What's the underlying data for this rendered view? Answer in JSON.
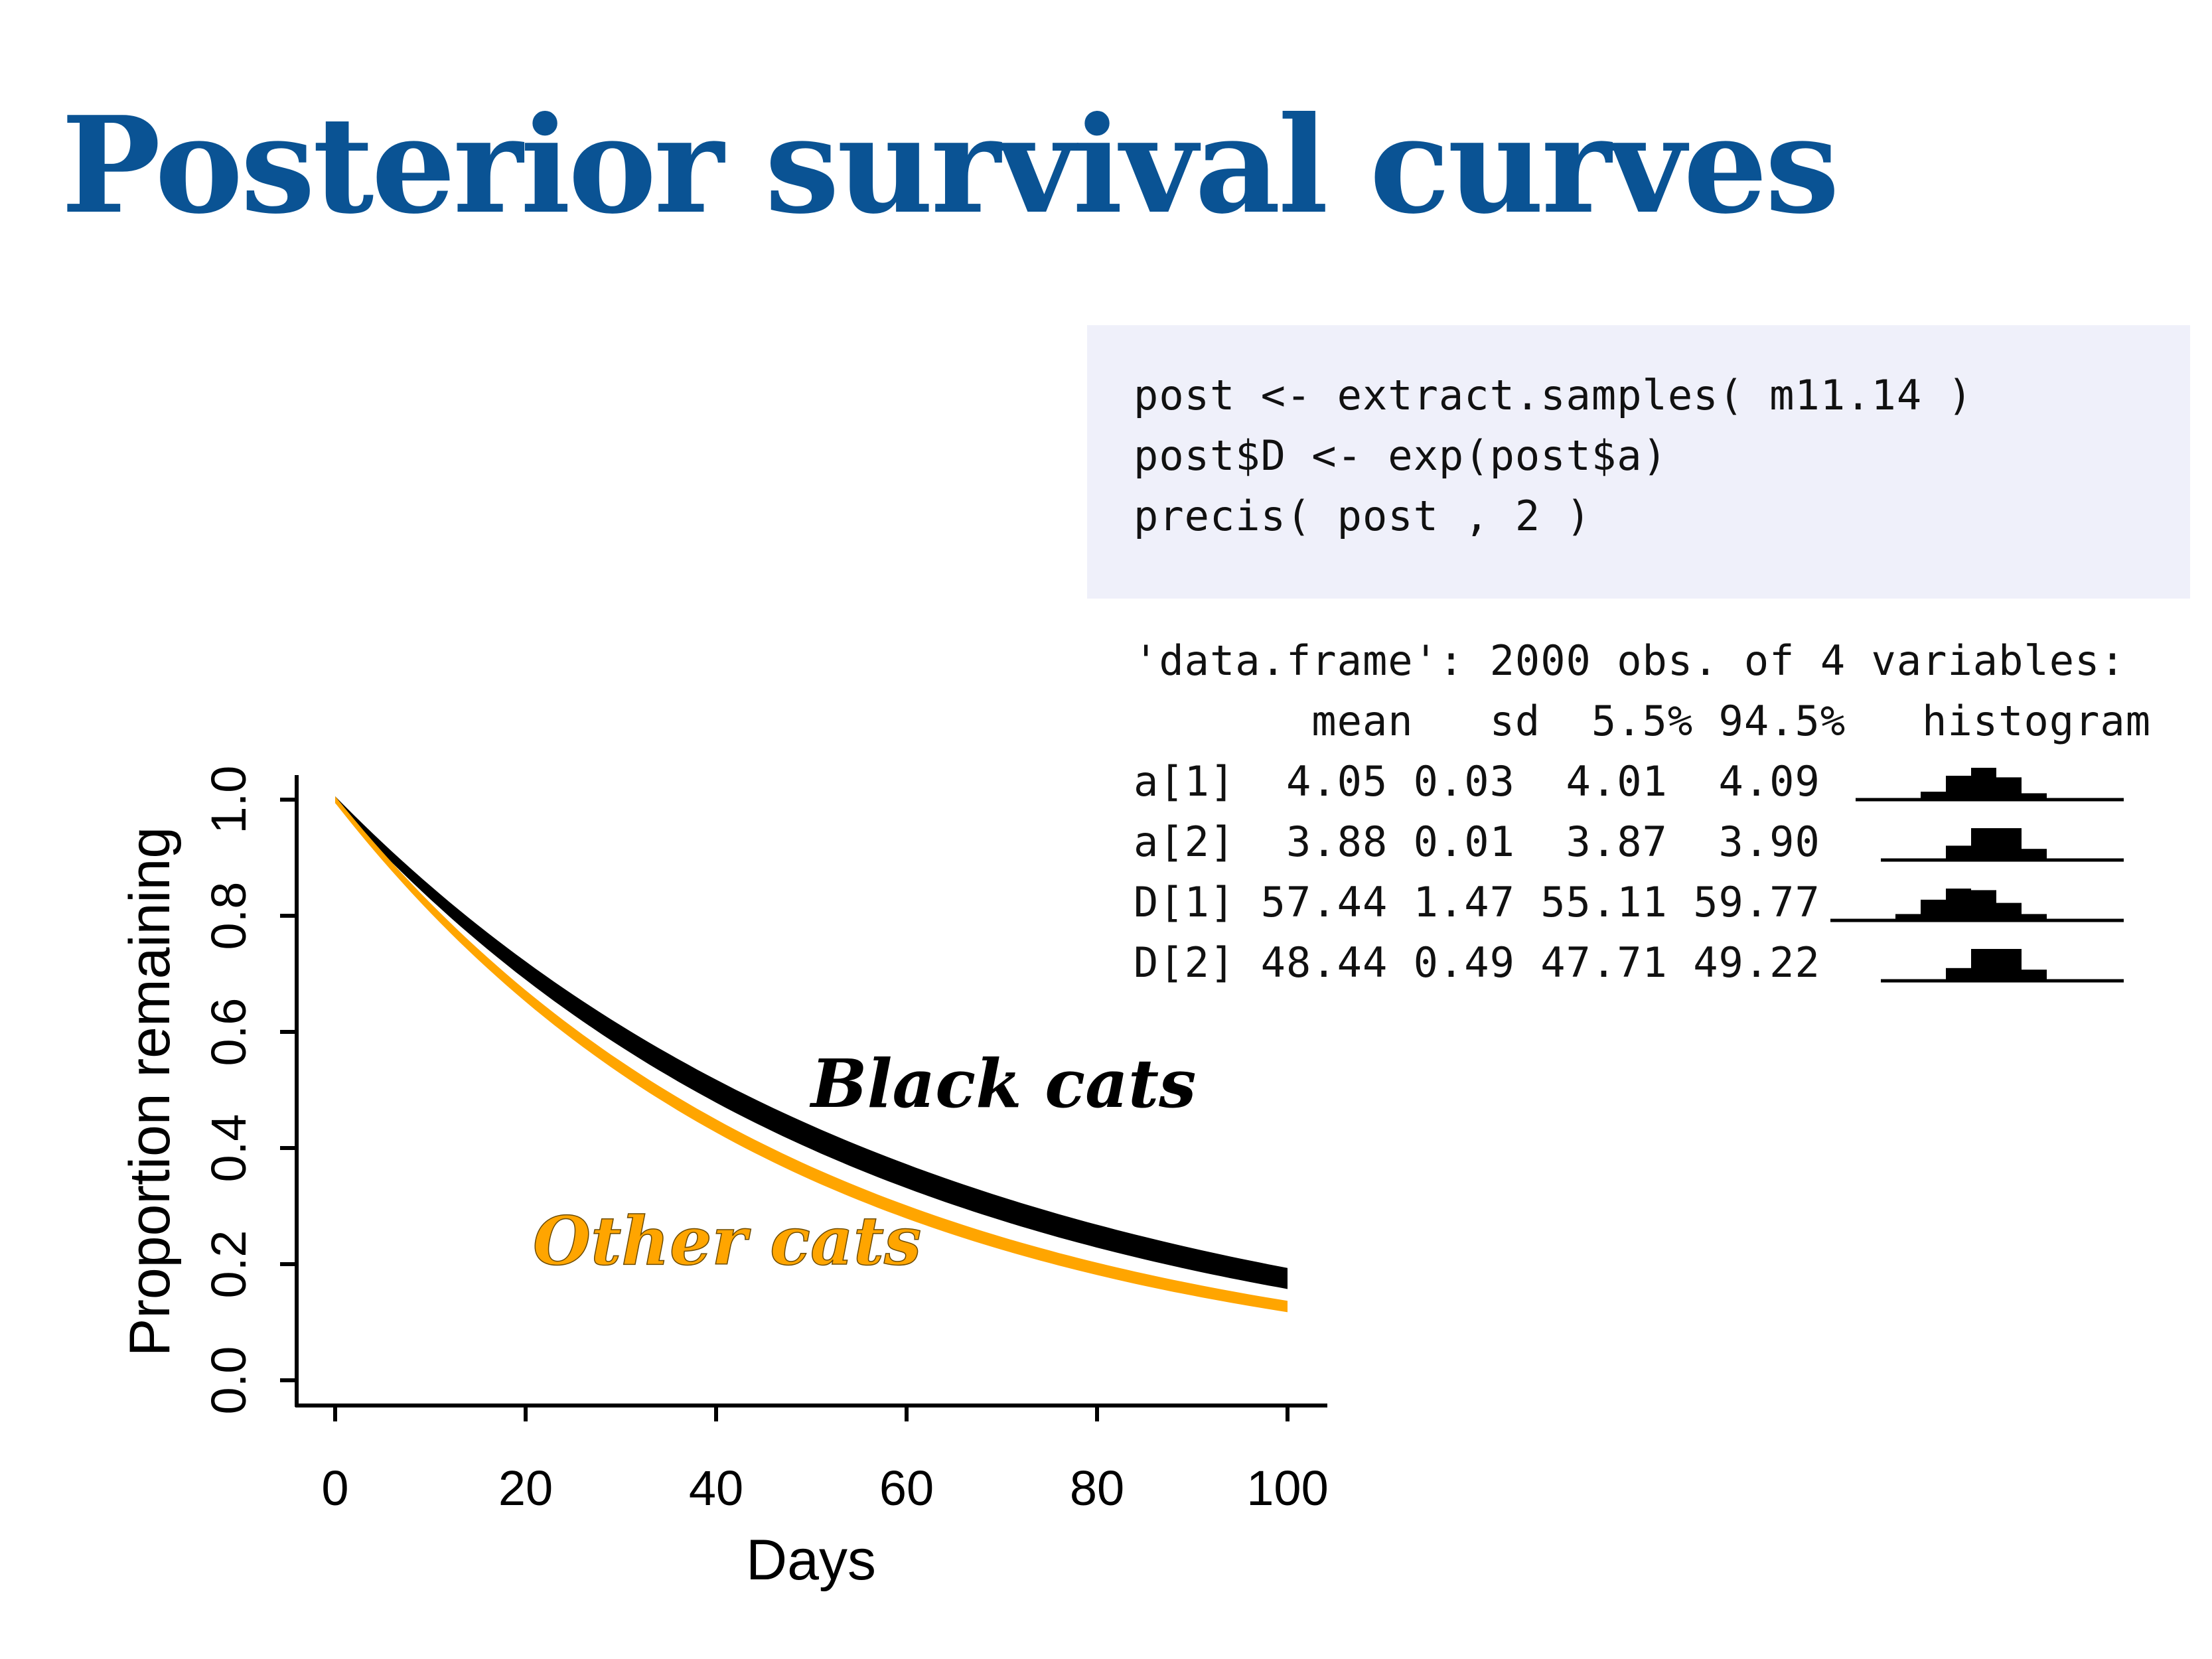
{
  "title": "Posterior survival curves",
  "code": {
    "lines": [
      "post <- extract.samples( m11.14 )",
      "post$D <- exp(post$a)",
      "precis( post , 2 )"
    ]
  },
  "output": {
    "header": "'data.frame': 2000 obs. of 4 variables:",
    "columns": [
      "mean",
      "sd",
      "5.5%",
      "94.5%",
      "histogram"
    ],
    "rows": [
      {
        "name": "a[1]",
        "mean": "4.05",
        "sd": "0.03",
        "p5": "4.01",
        "p95": "4.09",
        "hist": [
          0.05,
          0.25,
          0.75,
          1.0,
          0.7,
          0.2,
          0.05
        ]
      },
      {
        "name": "a[2]",
        "mean": "3.88",
        "sd": "0.01",
        "p5": "3.87",
        "p95": "3.90",
        "hist": [
          0.05,
          0.45,
          1.0,
          1.0,
          0.35,
          0.05
        ]
      },
      {
        "name": "D[1]",
        "mean": "57.44",
        "sd": "1.47",
        "p5": "55.11",
        "p95": "59.77",
        "hist": [
          0.05,
          0.2,
          0.65,
          1.0,
          0.95,
          0.55,
          0.2,
          0.05
        ]
      },
      {
        "name": "D[2]",
        "mean": "48.44",
        "sd": "0.49",
        "p5": "47.71",
        "p95": "49.22",
        "hist": [
          0.05,
          0.4,
          1.0,
          1.0,
          0.35,
          0.05
        ]
      }
    ]
  },
  "chart_data": {
    "type": "line",
    "xlabel": "Days",
    "ylabel": "Proportion remaining",
    "xlim": [
      0,
      100
    ],
    "ylim": [
      0,
      1
    ],
    "xticks": [
      "0",
      "20",
      "40",
      "60",
      "80",
      "100"
    ],
    "yticks": [
      "0.0",
      "0.2",
      "0.4",
      "0.6",
      "0.8",
      "1.0"
    ],
    "grid": false,
    "series": [
      {
        "name": "Black cats",
        "color": "#000000",
        "D_lower": 55.11,
        "D_upper": 59.77,
        "y_at_100": [
          0.16,
          0.19
        ]
      },
      {
        "name": "Other cats",
        "color": "#FFA500",
        "D_lower": 47.71,
        "D_upper": 49.22,
        "y_at_100": [
          0.12,
          0.13
        ]
      }
    ]
  }
}
